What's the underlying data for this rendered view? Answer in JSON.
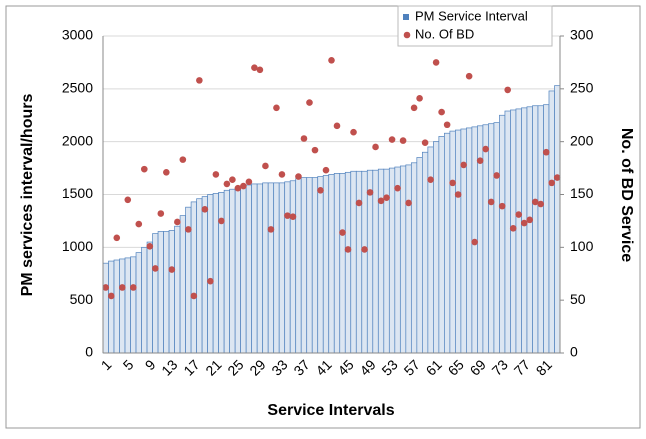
{
  "chart_data": {
    "type": "bar",
    "y_label": "PM services interval/hours",
    "y2_label": "No. of BD Service",
    "x_label": "Service Intervals",
    "categories": [
      "1",
      null,
      null,
      null,
      "5",
      null,
      null,
      null,
      "9",
      null,
      null,
      null,
      "13",
      null,
      null,
      null,
      "17",
      null,
      null,
      null,
      "21",
      null,
      null,
      null,
      "25",
      null,
      null,
      null,
      "29",
      null,
      null,
      null,
      "33",
      null,
      null,
      null,
      "37",
      null,
      null,
      null,
      "41",
      null,
      null,
      null,
      "45",
      null,
      null,
      null,
      "49",
      null,
      null,
      null,
      "53",
      null,
      null,
      null,
      "57",
      null,
      null,
      null,
      "61",
      null,
      null,
      null,
      "65",
      null,
      null,
      null,
      "69",
      null,
      null,
      null,
      "73",
      null,
      null,
      null,
      "77",
      null,
      null,
      null,
      "81",
      null,
      null
    ],
    "series": [
      {
        "name": "PM Service Interval",
        "color": "#4f81bd",
        "values": [
          850,
          870,
          880,
          890,
          900,
          910,
          950,
          1000,
          1050,
          1130,
          1150,
          1150,
          1160,
          1200,
          1300,
          1380,
          1430,
          1460,
          1480,
          1500,
          1510,
          1520,
          1540,
          1550,
          1560,
          1580,
          1590,
          1600,
          1600,
          1610,
          1610,
          1610,
          1610,
          1620,
          1630,
          1650,
          1660,
          1660,
          1660,
          1670,
          1680,
          1690,
          1700,
          1700,
          1710,
          1720,
          1720,
          1720,
          1730,
          1730,
          1740,
          1740,
          1750,
          1760,
          1770,
          1780,
          1800,
          1850,
          1900,
          1950,
          2000,
          2050,
          2080,
          2100,
          2110,
          2120,
          2130,
          2140,
          2150,
          2160,
          2170,
          2180,
          2250,
          2290,
          2300,
          2310,
          2320,
          2330,
          2340,
          2340,
          2350,
          2480,
          2530
        ]
      },
      {
        "name": "No. Of BD",
        "color": "#c0504d",
        "axis": "y2",
        "type": "scatter",
        "values": [
          62,
          54,
          109,
          62,
          145,
          62,
          122,
          174,
          101,
          80,
          132,
          171,
          79,
          124,
          183,
          117,
          54,
          258,
          136,
          68,
          169,
          125,
          160,
          164,
          156,
          158,
          162,
          270,
          268,
          177,
          117,
          232,
          169,
          130,
          129,
          167,
          203,
          237,
          192,
          154,
          173,
          277,
          215,
          114,
          98,
          209,
          142,
          98,
          152,
          195,
          144,
          147,
          202,
          156,
          201,
          142,
          232,
          241,
          199,
          164,
          275,
          228,
          216,
          161,
          150,
          178,
          262,
          105,
          182,
          193,
          143,
          168,
          139,
          249,
          118,
          131,
          123,
          126,
          143,
          141,
          190,
          161,
          166
        ]
      }
    ],
    "ylim": [
      0,
      3000
    ],
    "yticks": [
      0,
      500,
      1000,
      1500,
      2000,
      2500,
      3000
    ],
    "y2lim": [
      0,
      300
    ],
    "y2ticks": [
      0,
      50,
      100,
      150,
      200,
      250,
      300
    ],
    "grid": true,
    "legend": "top-right"
  }
}
